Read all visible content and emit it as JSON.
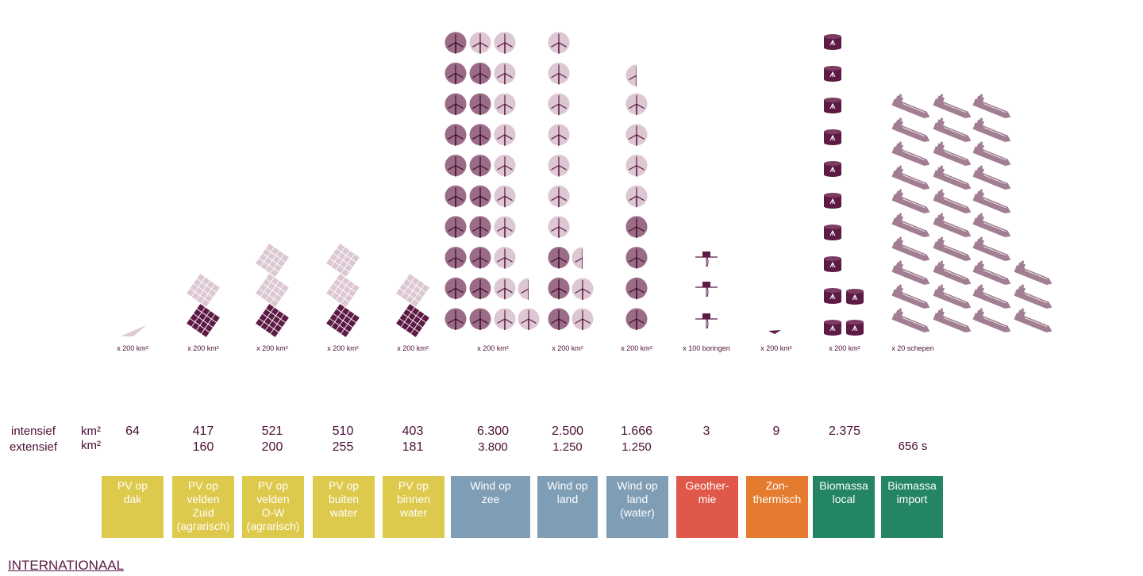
{
  "colors": {
    "dark": "#5c1a44",
    "mid": "#9b6c88",
    "light": "#dcc7d2",
    "pv": "#ddc94b",
    "wind": "#7f9db5",
    "geo": "#e0584a",
    "zon": "#e57b2e",
    "bio": "#238561"
  },
  "row_labels": {
    "intensief": "intensief",
    "extensief": "extensief",
    "unit1": "km²",
    "unit2": "km²"
  },
  "footer": "INTERNATIONAAL",
  "chart_data": {
    "type": "pictogram",
    "title": "",
    "categories": [
      {
        "id": "pv-dak",
        "label": "PV op\ndak",
        "color": "pv",
        "icon": "solar-panel",
        "unit_label": "x 200 km²",
        "intensief": "64",
        "extensief": ""
      },
      {
        "id": "pv-zuid",
        "label": "PV op\nvelden\nZuid\n(agrarisch)",
        "color": "pv",
        "icon": "solar-panel",
        "unit_label": "x 200 km²",
        "intensief": "417",
        "extensief": "160"
      },
      {
        "id": "pv-ow",
        "label": "PV op\nvelden\nO-W\n(agrarisch)",
        "color": "pv",
        "icon": "solar-panel",
        "unit_label": "x 200 km²",
        "intensief": "521",
        "extensief": "200"
      },
      {
        "id": "pv-buiten",
        "label": "PV op\nbuiten\nwater",
        "color": "pv",
        "icon": "solar-panel",
        "unit_label": "x 200 km²",
        "intensief": "510",
        "extensief": "255"
      },
      {
        "id": "pv-binnen",
        "label": "PV op\nbinnen\nwater",
        "color": "pv",
        "icon": "solar-panel",
        "unit_label": "x 200 km²",
        "intensief": "403",
        "extensief": "181"
      },
      {
        "id": "wind-zee",
        "label": "Wind op\nzee",
        "color": "wind",
        "icon": "wind-turbine",
        "unit_label": "x 200 km²",
        "intensief": "6.300",
        "extensief": "3.800"
      },
      {
        "id": "wind-land",
        "label": "Wind op\nland",
        "color": "wind",
        "icon": "wind-turbine",
        "unit_label": "x 200 km²",
        "intensief": "2.500",
        "extensief": "1.250"
      },
      {
        "id": "wind-water",
        "label": "Wind op\nland\n(water)",
        "color": "wind",
        "icon": "wind-turbine",
        "unit_label": "x 200 km²",
        "intensief": "1.666",
        "extensief": "1.250"
      },
      {
        "id": "geo",
        "label": "Geother-\nmie",
        "color": "geo",
        "icon": "drill",
        "unit_label": "x 100 boringen",
        "intensief": "3",
        "extensief": ""
      },
      {
        "id": "zon",
        "label": "Zon-\nthermisch",
        "color": "zon",
        "icon": "solar-panel",
        "unit_label": "x 200 km²",
        "intensief": "9",
        "extensief": ""
      },
      {
        "id": "bio-local",
        "label": "Biomassa\nlocal",
        "color": "bio",
        "icon": "biomass-tank",
        "unit_label": "x 200 km²",
        "intensief": "2.375",
        "extensief": ""
      },
      {
        "id": "bio-import",
        "label": "Biomassa\nimport",
        "color": "bio",
        "icon": "ship",
        "unit_label": "x 20 schepen",
        "intensief": "",
        "extensief": "656 s"
      }
    ]
  }
}
